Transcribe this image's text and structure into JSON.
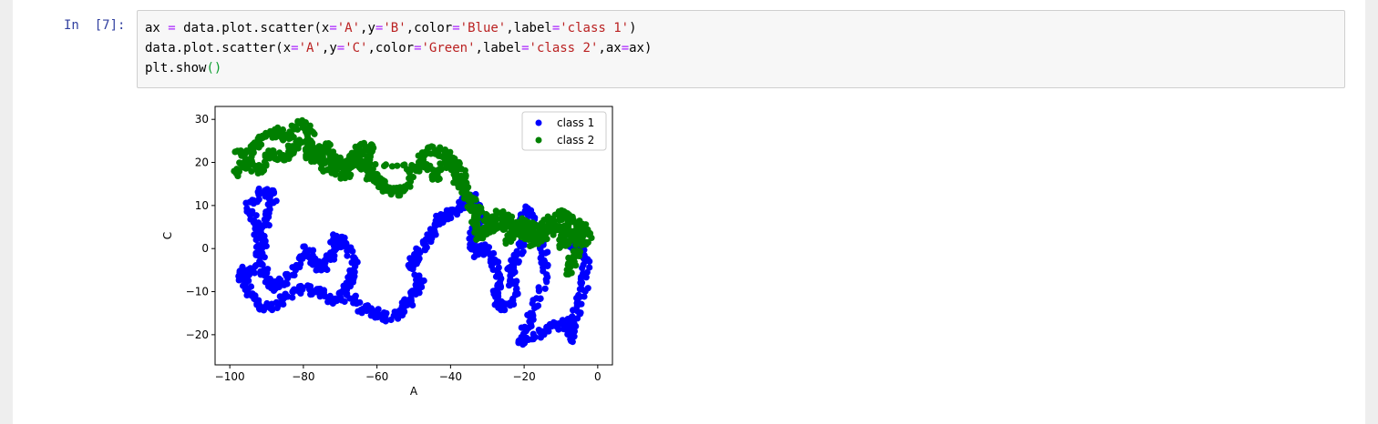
{
  "cell": {
    "prompt": "In  [7]:",
    "code_lines": [
      "ax = data.plot.scatter(x='A',y='B',color='Blue',label='class 1')",
      "data.plot.scatter(x='A',y='C',color='Green',label='class 2',ax=ax)",
      "plt.show()"
    ]
  },
  "chart_data": {
    "type": "scatter",
    "xlabel": "A",
    "ylabel": "C",
    "xlim": [
      -104,
      4
    ],
    "ylim": [
      -27,
      33
    ],
    "x_ticks": [
      -100,
      -80,
      -60,
      -40,
      -20,
      0
    ],
    "y_ticks": [
      -20,
      -10,
      0,
      10,
      20,
      30
    ],
    "x_tick_labels": [
      "−100",
      "−80",
      "−60",
      "−40",
      "−20",
      "0"
    ],
    "y_tick_labels": [
      "−20",
      "−10",
      "0",
      "10",
      "20",
      "30"
    ],
    "grid": false,
    "legend_position": "top-right",
    "series": [
      {
        "name": "class 1",
        "color": "#0000ff",
        "path": [
          [
            -97,
            -5
          ],
          [
            -95,
            -10
          ],
          [
            -92,
            -13
          ],
          [
            -88,
            -14
          ],
          [
            -84,
            -11
          ],
          [
            -80,
            -9
          ],
          [
            -76,
            -10
          ],
          [
            -72,
            -12
          ],
          [
            -69,
            -11
          ],
          [
            -67,
            -7
          ],
          [
            -66,
            -3
          ],
          [
            -69,
            1
          ],
          [
            -71,
            3
          ],
          [
            -72,
            -1
          ],
          [
            -74,
            -4
          ],
          [
            -77,
            -4
          ],
          [
            -79,
            0
          ],
          [
            -82,
            -4
          ],
          [
            -86,
            -8
          ],
          [
            -89,
            -9
          ],
          [
            -91,
            -5
          ],
          [
            -92,
            0
          ],
          [
            -93,
            5
          ],
          [
            -95,
            10
          ],
          [
            -91,
            14
          ],
          [
            -88,
            12
          ],
          [
            -90,
            7
          ],
          [
            -91,
            1
          ],
          [
            -94,
            -5
          ],
          [
            -98,
            -7
          ]
        ],
        "path2": [
          [
            -67,
            -11
          ],
          [
            -64,
            -14
          ],
          [
            -60,
            -15
          ],
          [
            -56,
            -16
          ],
          [
            -53,
            -14
          ],
          [
            -50,
            -11
          ],
          [
            -48,
            -8
          ],
          [
            -51,
            -4
          ],
          [
            -49,
            -2
          ],
          [
            -47,
            1
          ],
          [
            -45,
            4
          ],
          [
            -43,
            7
          ],
          [
            -40,
            8
          ],
          [
            -37,
            10
          ],
          [
            -34,
            12
          ],
          [
            -32,
            7
          ],
          [
            -34,
            2
          ],
          [
            -33,
            -1
          ],
          [
            -30,
            0
          ],
          [
            -28,
            -3
          ],
          [
            -27,
            -8
          ],
          [
            -28,
            -12
          ],
          [
            -25,
            -14
          ],
          [
            -22,
            -10
          ],
          [
            -24,
            -5
          ],
          [
            -22,
            -2
          ],
          [
            -20,
            2
          ],
          [
            -21,
            6
          ],
          [
            -19,
            9
          ],
          [
            -17,
            4
          ],
          [
            -15,
            1
          ],
          [
            -14,
            -5
          ],
          [
            -17,
            -13
          ],
          [
            -19,
            -18
          ],
          [
            -21,
            -22
          ],
          [
            -16,
            -20
          ],
          [
            -12,
            -18
          ],
          [
            -9,
            -17
          ],
          [
            -7,
            -21
          ],
          [
            -6,
            -15
          ],
          [
            -4,
            -10
          ],
          [
            -3,
            -4
          ],
          [
            -5,
            0
          ],
          [
            -8,
            2
          ]
        ]
      },
      {
        "name": "class 2",
        "color": "#008000",
        "path": [
          [
            -98,
            23
          ],
          [
            -95,
            21
          ],
          [
            -93,
            24
          ],
          [
            -90,
            26
          ],
          [
            -87,
            27
          ],
          [
            -84,
            26
          ],
          [
            -81,
            29
          ],
          [
            -78,
            27
          ],
          [
            -79,
            22
          ],
          [
            -76,
            21
          ],
          [
            -74,
            24
          ],
          [
            -72,
            21
          ],
          [
            -70,
            19
          ],
          [
            -67,
            20
          ],
          [
            -65,
            23
          ],
          [
            -62,
            24
          ],
          [
            -63,
            20
          ],
          [
            -62,
            17
          ],
          [
            -60,
            16
          ],
          [
            -58,
            14
          ],
          [
            -55,
            13
          ],
          [
            -52,
            14
          ],
          [
            -50,
            18
          ],
          [
            -48,
            21
          ],
          [
            -45,
            23
          ],
          [
            -42,
            22
          ],
          [
            -39,
            20
          ],
          [
            -37,
            18
          ],
          [
            -36,
            14
          ],
          [
            -34,
            10
          ],
          [
            -33,
            6
          ],
          [
            -32,
            2
          ],
          [
            -30,
            4
          ],
          [
            -27,
            6
          ],
          [
            -24,
            7
          ],
          [
            -22,
            4
          ],
          [
            -19,
            3
          ],
          [
            -17,
            1
          ],
          [
            -15,
            5
          ],
          [
            -12,
            7
          ],
          [
            -9,
            8
          ],
          [
            -6,
            6
          ],
          [
            -4,
            3
          ],
          [
            -5,
            0
          ],
          [
            -7,
            -3
          ],
          [
            -8,
            -6
          ]
        ],
        "path2": [
          [
            -98,
            17
          ],
          [
            -96,
            20
          ],
          [
            -92,
            18
          ],
          [
            -89,
            22
          ],
          [
            -86,
            21
          ],
          [
            -83,
            23
          ],
          [
            -80,
            25
          ],
          [
            -77,
            23
          ],
          [
            -74,
            19
          ],
          [
            -71,
            18
          ],
          [
            -68,
            17
          ],
          [
            -66,
            21
          ],
          [
            -64,
            19
          ],
          [
            -46,
            19
          ],
          [
            -44,
            16
          ],
          [
            -40,
            22
          ],
          [
            -38,
            15
          ],
          [
            -35,
            12
          ],
          [
            -31,
            8
          ],
          [
            -29,
            5
          ],
          [
            -26,
            9
          ],
          [
            -24,
            2
          ],
          [
            -21,
            6
          ],
          [
            -18,
            5
          ],
          [
            -14,
            3
          ],
          [
            -11,
            5
          ],
          [
            -8,
            4
          ],
          [
            -10,
            1
          ],
          [
            -6,
            2
          ],
          [
            -4,
            6
          ],
          [
            -2,
            1
          ]
        ]
      }
    ]
  }
}
